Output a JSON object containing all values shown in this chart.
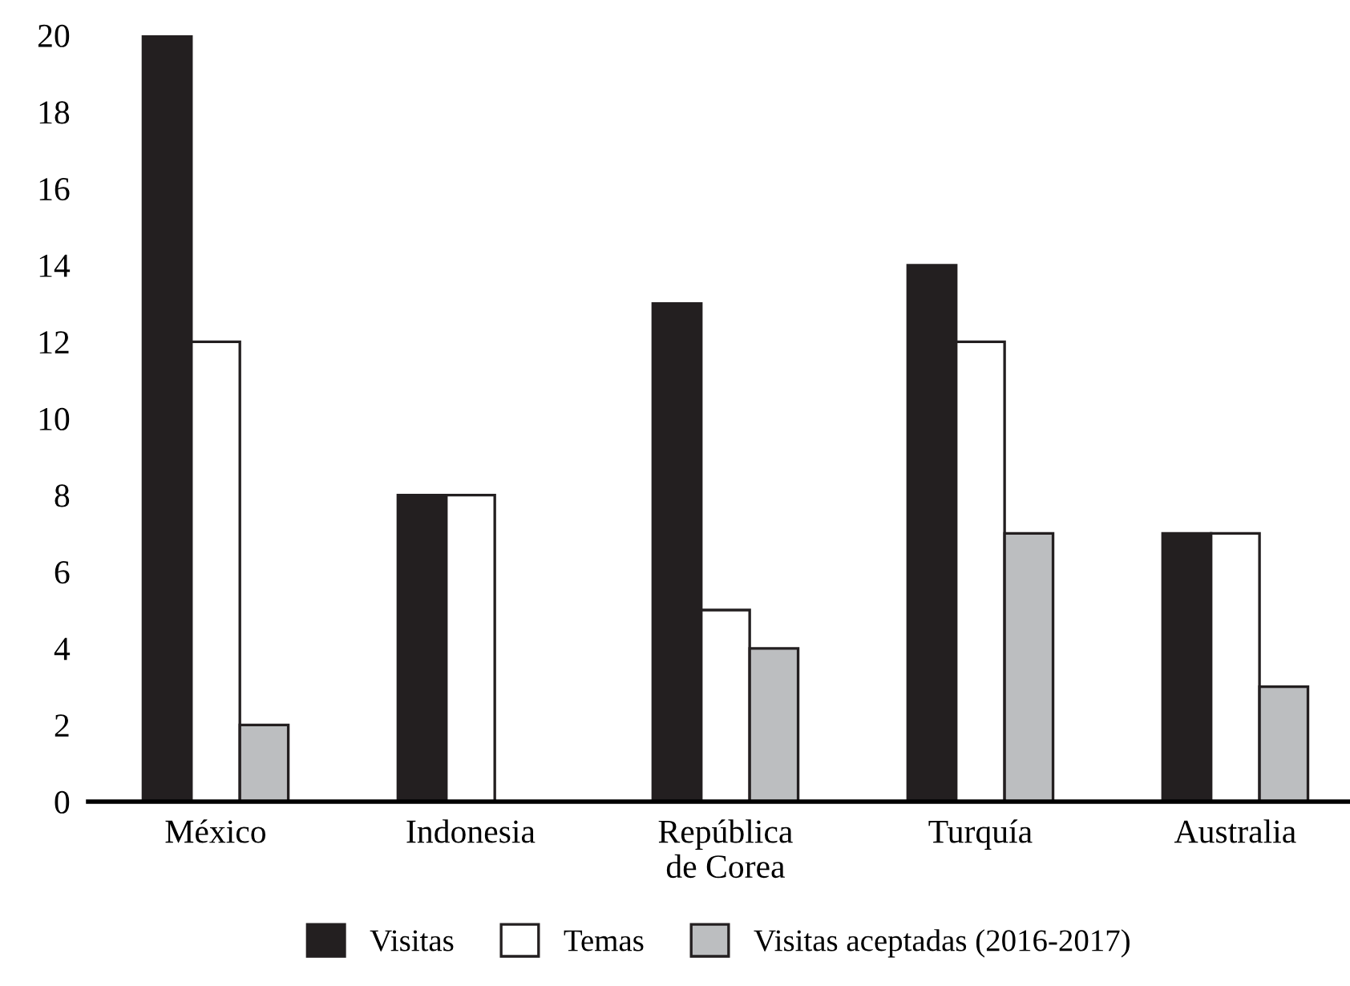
{
  "chart_data": {
    "type": "bar",
    "categories": [
      "México",
      "Indonesia",
      "República\nde Corea",
      "Turquía",
      "Australia"
    ],
    "series": [
      {
        "name": "Visitas",
        "color": "#231f20",
        "values": [
          20,
          8,
          13,
          14,
          7
        ]
      },
      {
        "name": "Temas",
        "color": "#ffffff",
        "values": [
          12,
          8,
          5,
          12,
          7
        ]
      },
      {
        "name": "Visitas aceptadas (2016-2017)",
        "color": "#bcbec0",
        "values": [
          2,
          null,
          4,
          7,
          3
        ]
      }
    ],
    "ylim": [
      0,
      20
    ],
    "yticks": [
      0,
      2,
      4,
      6,
      8,
      10,
      12,
      14,
      16,
      18,
      20
    ],
    "grid": false,
    "legend": "bottom"
  }
}
